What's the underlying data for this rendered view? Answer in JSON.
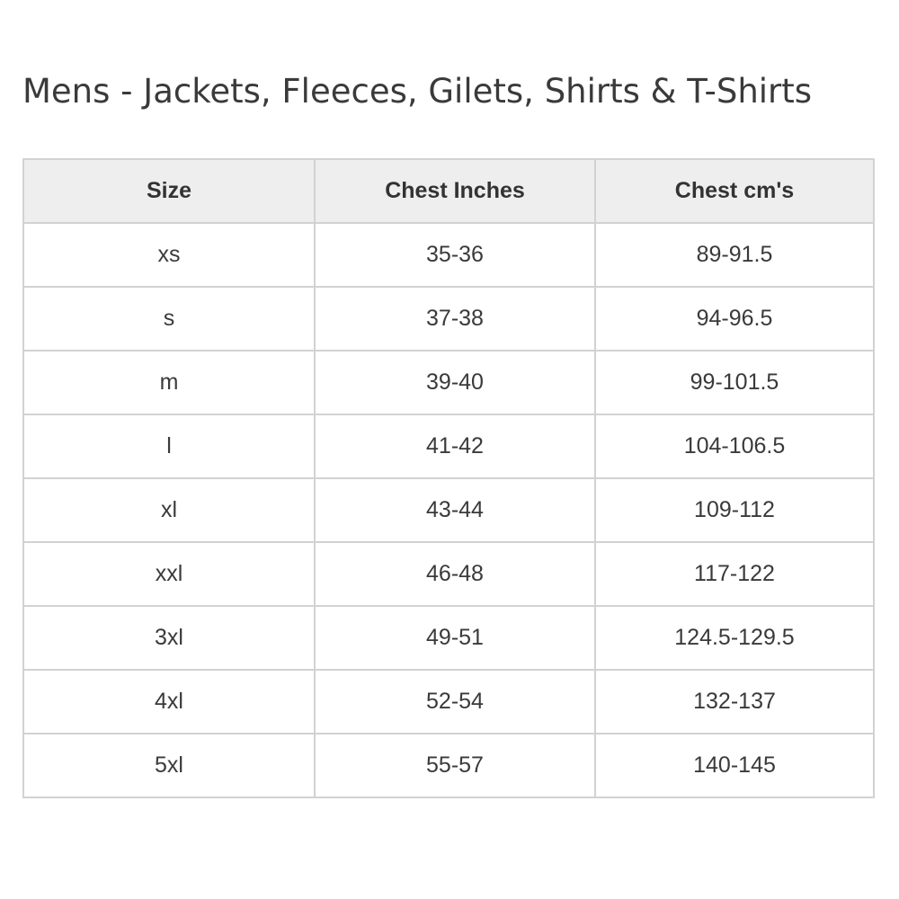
{
  "title": "Mens - Jackets, Fleeces, Gilets, Shirts & T-Shirts",
  "table": {
    "headers": [
      "Size",
      "Chest Inches",
      "Chest cm's"
    ],
    "rows": [
      [
        "xs",
        "35-36",
        "89-91.5"
      ],
      [
        "s",
        "37-38",
        "94-96.5"
      ],
      [
        "m",
        "39-40",
        "99-101.5"
      ],
      [
        "l",
        "41-42",
        "104-106.5"
      ],
      [
        "xl",
        "43-44",
        "109-112"
      ],
      [
        "xxl",
        "46-48",
        "117-122"
      ],
      [
        "3xl",
        "49-51",
        "124.5-129.5"
      ],
      [
        "4xl",
        "52-54",
        "132-137"
      ],
      [
        "5xl",
        "55-57",
        "140-145"
      ]
    ]
  },
  "colors": {
    "header_bg": "#eeeeee",
    "border": "#d2d2d2",
    "text": "#333333"
  }
}
